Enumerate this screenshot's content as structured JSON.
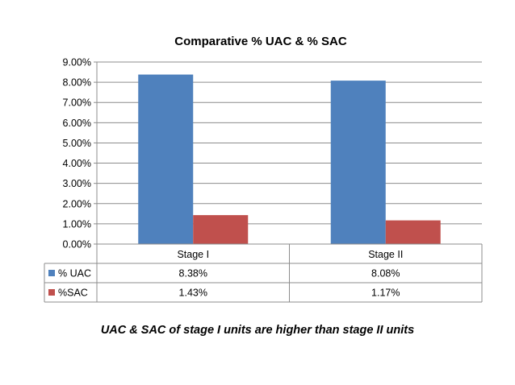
{
  "caption": "UAC & SAC of stage I units are higher than stage II units",
  "chart_data": {
    "type": "bar",
    "title": "Comparative % UAC & % SAC",
    "categories": [
      "Stage I",
      "Stage II"
    ],
    "series": [
      {
        "name": "% UAC",
        "values": [
          8.38,
          8.08
        ],
        "labels": [
          "8.38%",
          "8.08%"
        ],
        "color": "#4F81BD"
      },
      {
        "name": "%SAC",
        "values": [
          1.43,
          1.17
        ],
        "labels": [
          "1.43%",
          "1.17%"
        ],
        "color": "#C0504D"
      }
    ],
    "yticks": [
      "0.00%",
      "1.00%",
      "2.00%",
      "3.00%",
      "4.00%",
      "5.00%",
      "6.00%",
      "7.00%",
      "8.00%",
      "9.00%"
    ],
    "ylim": [
      0,
      9
    ],
    "grid": true,
    "legend": "data-table",
    "xlabel": "",
    "ylabel": ""
  }
}
